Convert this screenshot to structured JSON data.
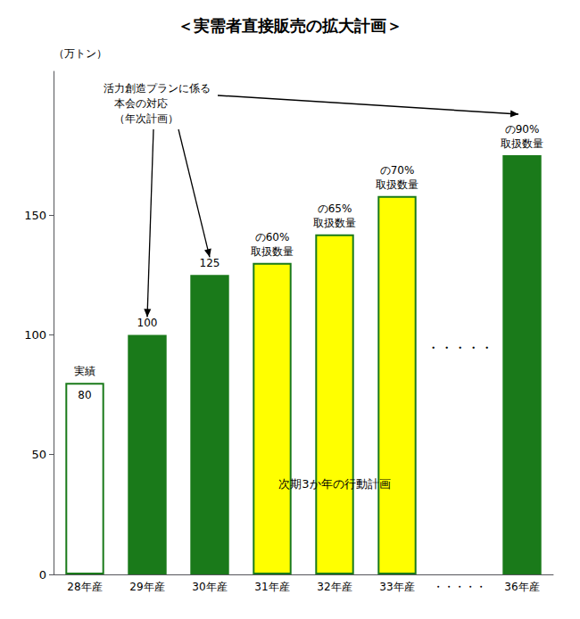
{
  "chart_data": {
    "type": "bar",
    "title": "＜実需者直接販売の拡大計画＞",
    "ylabel": "（万トン）",
    "categories": [
      "28年産",
      "29年産",
      "30年産",
      "31年産",
      "32年産",
      "33年産",
      "・・・・・",
      "36年産"
    ],
    "values": [
      80,
      100,
      125,
      130,
      142,
      158,
      null,
      175
    ],
    "colors": [
      "white",
      "#1a7a1a",
      "#1a7a1a",
      "#ffff00",
      "#ffff00",
      "#ffff00",
      null,
      "#1a7a1a"
    ],
    "edge_color": "#1a7a1a",
    "value_labels": [
      "80",
      "100",
      "125",
      null,
      null,
      null,
      null,
      null
    ],
    "ylim": [
      0,
      210
    ],
    "yticks": [
      0,
      50,
      100,
      150
    ],
    "grid": false,
    "annotations": [
      {
        "category": "28年産",
        "text": "実績"
      },
      {
        "category": "31年産",
        "text": "の60%\n取扱数量"
      },
      {
        "category": "32年産",
        "text": "の65%\n取扱数量"
      },
      {
        "category": "33年産",
        "text": "の70%\n取扱数量"
      },
      {
        "category": "36年産",
        "text": "の90%\n取扱数量"
      },
      {
        "category": "・・・・・",
        "text": "・・・・・"
      },
      {
        "categories": [
          "31年産",
          "32年産",
          "33年産"
        ],
        "text": "次期3か年の行動計画"
      },
      {
        "text": "活力創造プランに係る\n　本会の対応\n　（年次計画）",
        "points_to": [
          "29年産",
          "30年産",
          "36年産"
        ]
      }
    ]
  }
}
